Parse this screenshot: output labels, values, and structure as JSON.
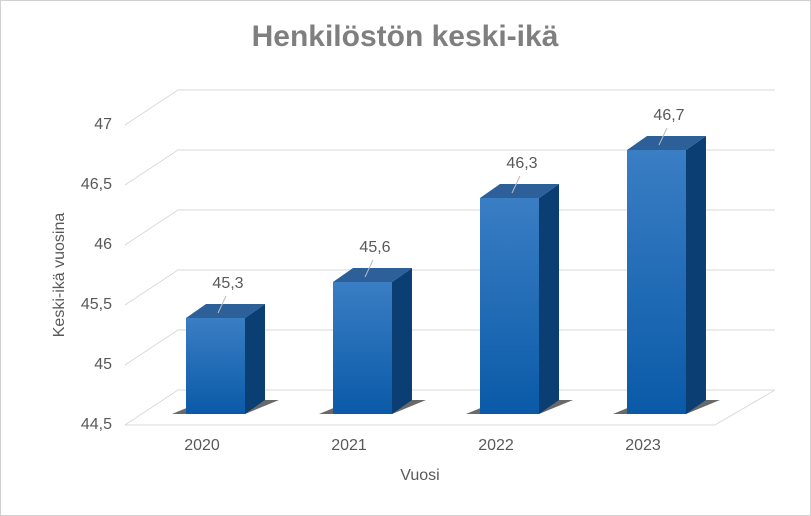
{
  "chart_data": {
    "type": "bar3d",
    "title": "Henkilöstön  keski-ikä",
    "x_label": "Vuosi",
    "y_label": "Keski-ikä vuosina",
    "categories": [
      "2020",
      "2021",
      "2022",
      "2023"
    ],
    "values": [
      45.3,
      45.6,
      46.3,
      46.7
    ],
    "value_labels": [
      "45,3",
      "45,6",
      "46,3",
      "46,7"
    ],
    "color": "#1565b0",
    "ylim": [
      44.5,
      47
    ],
    "yticks": [
      {
        "value": 44.5,
        "label": "44,5"
      },
      45,
      {
        "value": 45.5,
        "label": "45,5"
      },
      46,
      {
        "value": 46.5,
        "label": "46,5"
      },
      47
    ],
    "grid": true
  }
}
